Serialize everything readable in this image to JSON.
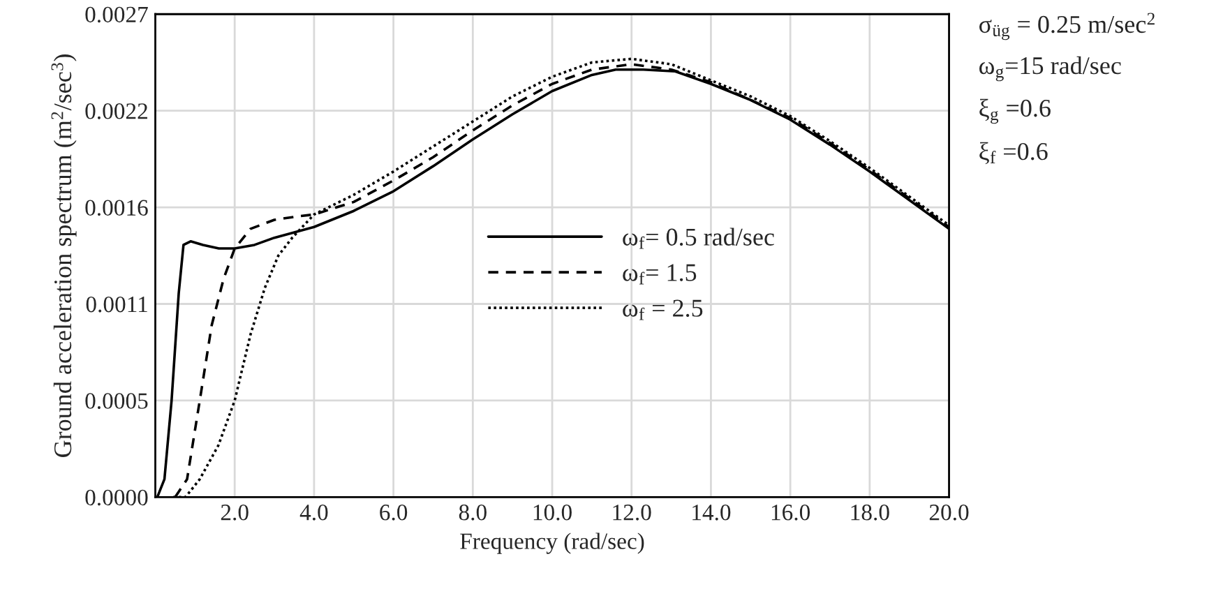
{
  "chart_data": {
    "type": "line",
    "xlabel": "Frequency (rad/sec)",
    "ylabel": "Ground acceleration spectrum (m$^{2}$/sec$^{3}$)",
    "xlim": [
      0,
      20
    ],
    "xticks": [
      {
        "value": 2,
        "label": "2.0"
      },
      {
        "value": 4,
        "label": "4.0"
      },
      {
        "value": 6,
        "label": "6.0"
      },
      {
        "value": 8,
        "label": "8.0"
      },
      {
        "value": 10,
        "label": "10.0"
      },
      {
        "value": 12,
        "label": "12.0"
      },
      {
        "value": 14,
        "label": "14.0"
      },
      {
        "value": 16,
        "label": "16.0"
      },
      {
        "value": 18,
        "label": "18.0"
      },
      {
        "value": 20,
        "label": "20.0"
      }
    ],
    "ylim": [
      0,
      0.0027
    ],
    "yticks": [
      {
        "value": 0,
        "label": "0.0000"
      },
      {
        "value": 0.00054,
        "label": "0.0005"
      },
      {
        "value": 0.00108,
        "label": "0.0011"
      },
      {
        "value": 0.00162,
        "label": "0.0016"
      },
      {
        "value": 0.00216,
        "label": "0.0022"
      },
      {
        "value": 0.0027,
        "label": "0.0027"
      }
    ],
    "grid": true,
    "legend": "center",
    "series": [
      {
        "name": "ω$_{f}$= 0.5 rad/sec",
        "color": "#000000",
        "line_style": "solid",
        "x": [
          0.05,
          0.23,
          0.41,
          0.59,
          0.71,
          0.89,
          1.2,
          1.6,
          2.0,
          2.5,
          3.0,
          3.5,
          4.0,
          5.0,
          6.0,
          7.0,
          8.0,
          9.0,
          10.0,
          11.0,
          11.6,
          12.3,
          13.1,
          14.0,
          15.0,
          16.0,
          17.0,
          18.0,
          19.0,
          20.0
        ],
        "values": [
          0,
          0.0001,
          0.00054,
          0.00114,
          0.00141,
          0.00143,
          0.00141,
          0.00139,
          0.00139,
          0.00141,
          0.00145,
          0.00148,
          0.00151,
          0.0016,
          0.00171,
          0.00185,
          0.002,
          0.00214,
          0.00227,
          0.00236,
          0.00239,
          0.00239,
          0.00238,
          0.00231,
          0.00222,
          0.00211,
          0.00197,
          0.00182,
          0.00166,
          0.0015
        ]
      },
      {
        "name": "ω$_{f}$= 1.5",
        "color": "#000000",
        "line_style": "dashed",
        "x": [
          0.5,
          0.8,
          1.12,
          1.42,
          1.72,
          2.0,
          2.4,
          3.0,
          3.6,
          4.0,
          5.0,
          6.0,
          7.0,
          8.0,
          9.0,
          10.0,
          11.0,
          12.0,
          13.0,
          14.0,
          15.0,
          16.0,
          17.0,
          18.0,
          19.0,
          20.0
        ],
        "values": [
          0,
          0.0001,
          0.00054,
          0.00096,
          0.00122,
          0.00139,
          0.0015,
          0.00155,
          0.00157,
          0.00158,
          0.00165,
          0.00177,
          0.0019,
          0.00205,
          0.00219,
          0.00231,
          0.00239,
          0.00242,
          0.00239,
          0.00232,
          0.00222,
          0.00212,
          0.00198,
          0.00183,
          0.00167,
          0.00151
        ]
      },
      {
        "name": "ω$_{f}$ = 2.5",
        "color": "#000000",
        "line_style": "dotted",
        "x": [
          0.45,
          0.76,
          1.12,
          1.59,
          2.0,
          2.4,
          2.76,
          3.1,
          3.45,
          4.0,
          5.0,
          6.0,
          7.0,
          8.0,
          9.0,
          10.0,
          11.0,
          12.0,
          13.0,
          14.0,
          15.0,
          16.0,
          17.0,
          18.0,
          19.0,
          20.0
        ],
        "values": [
          0,
          0,
          0.0001,
          0.00029,
          0.00054,
          0.00091,
          0.00117,
          0.00135,
          0.00145,
          0.00158,
          0.00169,
          0.00182,
          0.00196,
          0.0021,
          0.00224,
          0.00235,
          0.00243,
          0.00245,
          0.00242,
          0.00233,
          0.00224,
          0.00213,
          0.00199,
          0.00184,
          0.00168,
          0.00152
        ]
      }
    ],
    "annotations": [
      "σ$_{üg}$ = 0.25 m/sec$^{2}$",
      "ω$_{g}$=15 rad/sec",
      "ξ$_{g}$ =0.6",
      "ξ$_{f}$ =0.6"
    ]
  }
}
